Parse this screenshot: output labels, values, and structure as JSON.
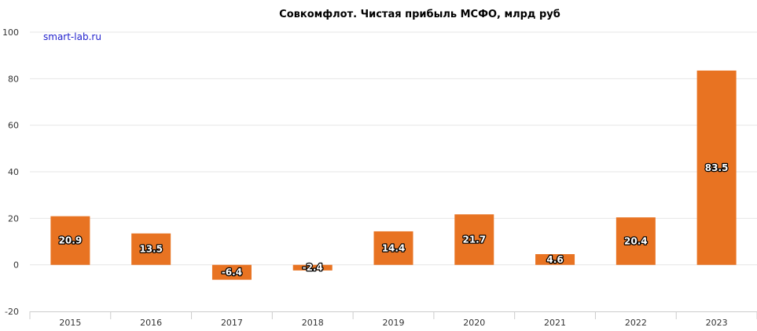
{
  "chart_data": {
    "type": "bar",
    "title": "Совкомфлот. Чистая прибыль МСФО, млрд руб",
    "watermark": "smart-lab.ru",
    "xlabel": "",
    "ylabel": "",
    "categories": [
      "2015",
      "2016",
      "2017",
      "2018",
      "2019",
      "2020",
      "2021",
      "2022",
      "2023"
    ],
    "values": [
      20.9,
      13.5,
      -6.4,
      -2.4,
      14.4,
      21.7,
      4.6,
      20.4,
      83.5
    ],
    "data_labels": [
      "20.9",
      "13.5",
      "-6.4",
      "-2.4",
      "14.4",
      "21.7",
      "4.6",
      "20.4",
      "83.5"
    ],
    "y_ticks": [
      100,
      80,
      60,
      40,
      20,
      0,
      -20
    ],
    "ylim": [
      -20,
      100
    ],
    "grid": true,
    "legend": "none",
    "colors": {
      "bar": "#e87322",
      "grid": "#e6e6e6",
      "watermark": "#1f1fcc"
    }
  }
}
